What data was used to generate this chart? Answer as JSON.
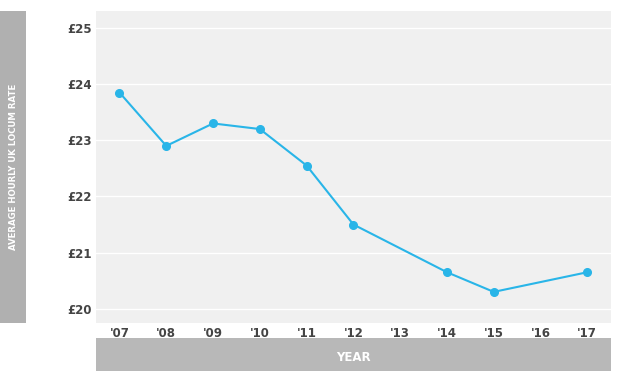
{
  "years": [
    "'07",
    "'08",
    "'09",
    "'10",
    "'11",
    "'12",
    "'13",
    "'14",
    "'15",
    "'16",
    "'17"
  ],
  "year_nums": [
    2007,
    2008,
    2009,
    2010,
    2011,
    2012,
    2013,
    2014,
    2015,
    2016,
    2017
  ],
  "data_x": [
    2007,
    2008,
    2009,
    2010,
    2011,
    2012,
    2014,
    2015,
    2017
  ],
  "data_y": [
    23.85,
    22.9,
    23.3,
    23.2,
    22.55,
    21.5,
    20.65,
    20.3,
    20.65
  ],
  "ylim": [
    19.75,
    25.3
  ],
  "yticks": [
    20,
    21,
    22,
    23,
    24,
    25
  ],
  "ylabel": "AVERAGE HOURLY UK LOCUM RATE",
  "xlabel": "YEAR",
  "line_color": "#29b5e8",
  "marker_color": "#29b5e8",
  "bg_color": "#ffffff",
  "plot_bg_color": "#f0f0f0",
  "ylabel_bg": "#b0b0b0",
  "xlabel_bg": "#b8b8b8",
  "tick_color": "#444444",
  "grid_color": "#ffffff"
}
